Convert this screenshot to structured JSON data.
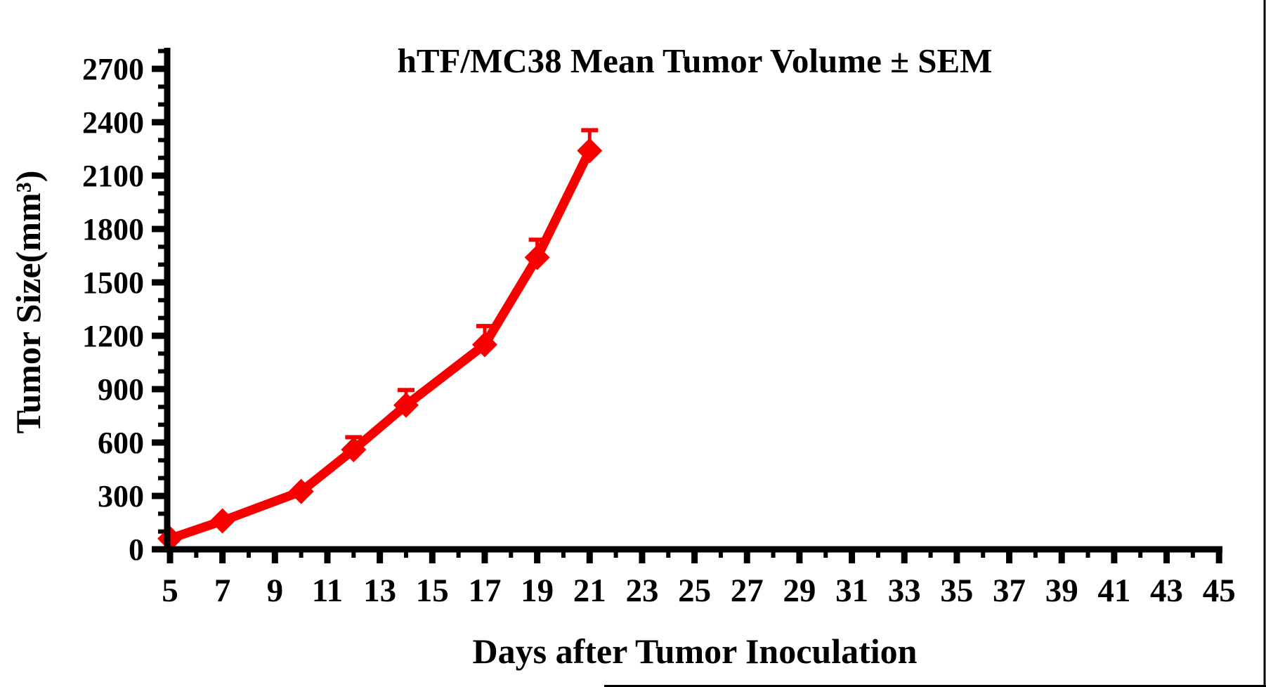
{
  "figure": {
    "background": "#ffffff",
    "edge_artifact_color": "#000000"
  },
  "chart_data": {
    "type": "line",
    "title": "hTF/MC38 Mean Tumor Volume ± SEM",
    "xlabel": "Days after Tumor Inoculation",
    "ylabel": "Tumor Size(mm³)",
    "x": [
      5,
      7,
      10,
      12,
      14,
      17,
      19,
      21
    ],
    "series": [
      {
        "name": "hTF/MC38 mean tumor volume",
        "values": [
          60,
          160,
          325,
          560,
          810,
          1150,
          1640,
          2240
        ],
        "sem_upper": [
          0,
          0,
          0,
          70,
          85,
          105,
          100,
          115
        ],
        "color": "#f80000",
        "marker": "diamond",
        "line_width": 13
      }
    ],
    "xlim": [
      4.9,
      45.2
    ],
    "ylim": [
      0,
      2800
    ],
    "x_major_ticks": [
      5,
      7,
      9,
      11,
      13,
      15,
      17,
      19,
      21,
      23,
      25,
      27,
      29,
      31,
      33,
      35,
      37,
      39,
      41,
      43,
      45
    ],
    "x_minor_ticks": [
      6,
      8,
      10,
      12,
      14,
      16,
      18,
      20,
      22,
      24,
      26,
      28,
      30,
      32,
      34,
      36,
      38,
      40,
      42,
      44
    ],
    "y_major_ticks": [
      0,
      300,
      600,
      900,
      1200,
      1500,
      1800,
      2100,
      2400,
      2700
    ],
    "y_minor_step": 100,
    "axis_color": "#000000",
    "grid": false,
    "legend": null
  }
}
